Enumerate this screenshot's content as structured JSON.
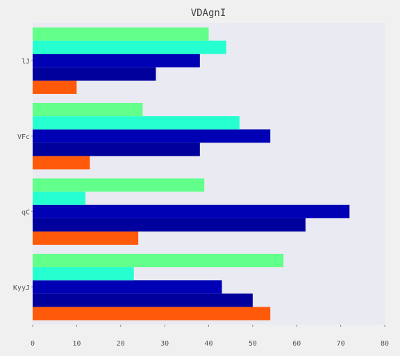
{
  "chart_data": {
    "type": "bar",
    "orientation": "horizontal",
    "title": "VDAgnI",
    "xlabel": "",
    "ylabel": "",
    "categories": [
      "KyyJ",
      "qC",
      "VFc",
      "lJ"
    ],
    "series": [
      {
        "color": "#ff5a0a",
        "values": [
          54,
          24,
          13,
          10
        ]
      },
      {
        "color": "#00009c",
        "values": [
          50,
          62,
          38,
          28
        ]
      },
      {
        "color": "#0000b4",
        "values": [
          43,
          72,
          54,
          38
        ]
      },
      {
        "color": "#26ffcf",
        "values": [
          23,
          12,
          47,
          44
        ]
      },
      {
        "color": "#63ff8b",
        "values": [
          57,
          39,
          25,
          40
        ]
      }
    ],
    "xlim": [
      0,
      80
    ],
    "xticks": [
      0,
      10,
      20,
      30,
      40,
      50,
      60,
      70,
      80
    ],
    "grid": false,
    "legend": "none",
    "plot_background": "#eaeaf2",
    "page_background": "#f0f0f0"
  }
}
